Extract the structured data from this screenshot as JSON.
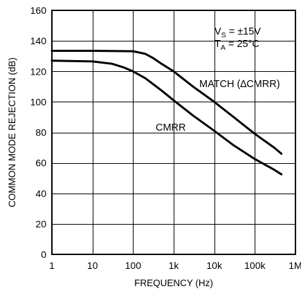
{
  "chart_data": {
    "type": "line",
    "xlabel": "FREQUENCY (Hz)",
    "ylabel": "COMMON MODE REJECTION (dB)",
    "x_scale": "log",
    "xlim": [
      1,
      1000000
    ],
    "ylim": [
      0,
      160
    ],
    "grid": true,
    "x_ticks": [
      {
        "value": 1,
        "label": "1"
      },
      {
        "value": 10,
        "label": "10"
      },
      {
        "value": 100,
        "label": "100"
      },
      {
        "value": 1000,
        "label": "1k"
      },
      {
        "value": 10000,
        "label": "10k"
      },
      {
        "value": 100000,
        "label": "100k"
      },
      {
        "value": 1000000,
        "label": "1M"
      }
    ],
    "y_ticks": [
      {
        "value": 0,
        "label": "0"
      },
      {
        "value": 20,
        "label": "20"
      },
      {
        "value": 40,
        "label": "40"
      },
      {
        "value": 60,
        "label": "60"
      },
      {
        "value": 80,
        "label": "80"
      },
      {
        "value": 100,
        "label": "100"
      },
      {
        "value": 120,
        "label": "120"
      },
      {
        "value": 140,
        "label": "140"
      },
      {
        "value": 160,
        "label": "160"
      }
    ],
    "annotations": {
      "vs_main": "V",
      "vs_sub": "S",
      "vs_rest": " = ±15V",
      "ta_main": "T",
      "ta_sub": "A",
      "ta_rest": " = 25°C"
    },
    "series": [
      {
        "name": "MATCH (∆CMRR)",
        "x": [
          1,
          10,
          100,
          200,
          300,
          500,
          1000,
          3000,
          10000,
          30000,
          100000,
          300000,
          450000
        ],
        "y": [
          133.5,
          133.5,
          133.2,
          131.5,
          129.0,
          125.0,
          120.0,
          110.0,
          100.0,
          90.0,
          79.0,
          70.0,
          66.0
        ]
      },
      {
        "name": "CMRR",
        "x": [
          1,
          10,
          30,
          60,
          100,
          200,
          500,
          1000,
          3000,
          10000,
          30000,
          100000,
          300000,
          450000
        ],
        "y": [
          127.0,
          126.5,
          125.0,
          122.5,
          120.0,
          115.5,
          107.5,
          101.0,
          91.0,
          81.0,
          71.5,
          62.5,
          55.5,
          52.5
        ]
      }
    ]
  }
}
